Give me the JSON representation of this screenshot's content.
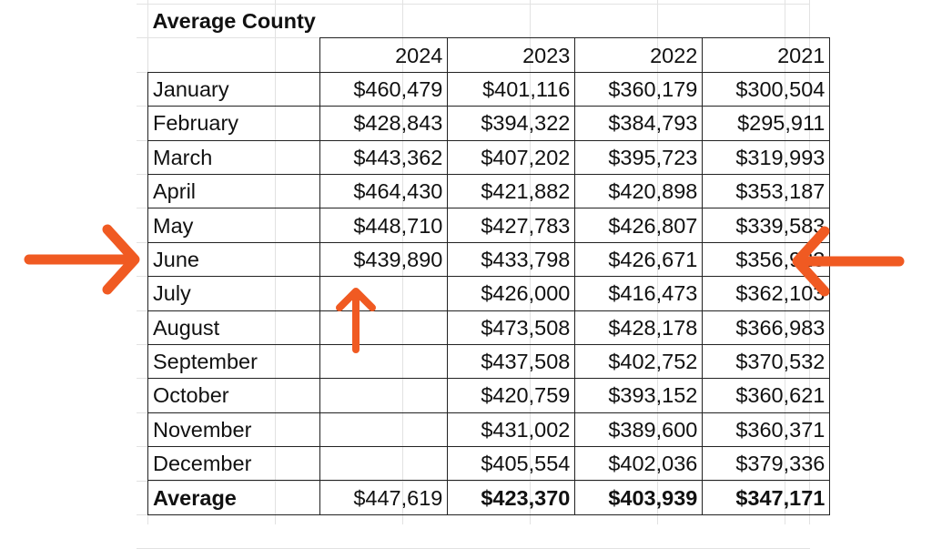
{
  "title": "Average County",
  "columns": [
    "",
    "2024",
    "2023",
    "2022",
    "2021"
  ],
  "rows": [
    {
      "label": "January",
      "values": [
        "$460,479",
        "$401,116",
        "$360,179",
        "$300,504"
      ]
    },
    {
      "label": "February",
      "values": [
        "$428,843",
        "$394,322",
        "$384,793",
        "$295,911"
      ]
    },
    {
      "label": "March",
      "values": [
        "$443,362",
        "$407,202",
        "$395,723",
        "$319,993"
      ]
    },
    {
      "label": "April",
      "values": [
        "$464,430",
        "$421,882",
        "$420,898",
        "$353,187"
      ]
    },
    {
      "label": "May",
      "values": [
        "$448,710",
        "$427,783",
        "$426,807",
        "$339,583"
      ]
    },
    {
      "label": "June",
      "values": [
        "$439,890",
        "$433,798",
        "$426,671",
        "$356,923"
      ]
    },
    {
      "label": "July",
      "values": [
        "",
        "$426,000",
        "$416,473",
        "$362,103"
      ]
    },
    {
      "label": "August",
      "values": [
        "",
        "$473,508",
        "$428,178",
        "$366,983"
      ]
    },
    {
      "label": "September",
      "values": [
        "",
        "$437,508",
        "$402,752",
        "$370,532"
      ]
    },
    {
      "label": "October",
      "values": [
        "",
        "$420,759",
        "$393,152",
        "$360,621"
      ]
    },
    {
      "label": "November",
      "values": [
        "",
        "$431,002",
        "$389,600",
        "$360,371"
      ]
    },
    {
      "label": "December",
      "values": [
        "",
        "$405,554",
        "$402,036",
        "$379,336"
      ]
    }
  ],
  "average": {
    "label": "Average",
    "values": [
      "$447,619",
      "$423,370",
      "$403,939",
      "$347,171"
    ]
  },
  "annotations": {
    "arrow_color": "#f05a22",
    "arrows": [
      "arrow-right-to-june",
      "arrow-left-to-june",
      "arrow-up-to-june-2024"
    ]
  }
}
